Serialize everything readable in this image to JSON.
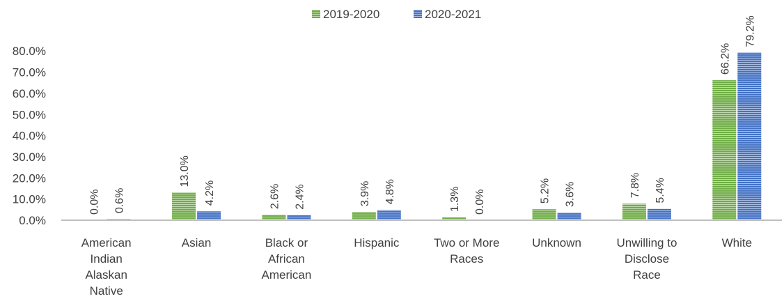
{
  "chart_data": {
    "type": "bar",
    "categories": [
      [
        "American",
        "Indian",
        "Alaskan",
        "Native"
      ],
      [
        "Asian"
      ],
      [
        "Black or",
        "African",
        "American"
      ],
      [
        "Hispanic"
      ],
      [
        "Two or More",
        "Races"
      ],
      [
        "Unknown"
      ],
      [
        "Unwilling to",
        "Disclose",
        "Race"
      ],
      [
        "White"
      ]
    ],
    "series": [
      {
        "name": "2019-2020",
        "color": "#70AD47",
        "values": [
          0.0,
          13.0,
          2.6,
          3.9,
          1.3,
          5.2,
          7.8,
          66.2
        ],
        "labels": [
          "0.0%",
          "13.0%",
          "2.6%",
          "3.9%",
          "1.3%",
          "5.2%",
          "7.8%",
          "66.2%"
        ]
      },
      {
        "name": "2020-2021",
        "color": "#4472C4",
        "values": [
          0.6,
          4.2,
          2.4,
          4.8,
          0.0,
          3.6,
          5.4,
          79.2
        ],
        "labels": [
          "0.6%",
          "4.2%",
          "2.4%",
          "4.8%",
          "0.0%",
          "3.6%",
          "5.4%",
          "79.2%"
        ]
      }
    ],
    "yticks": [
      "0.0%",
      "10.0%",
      "20.0%",
      "30.0%",
      "40.0%",
      "50.0%",
      "60.0%",
      "70.0%",
      "80.0%"
    ],
    "ylim": [
      0,
      80
    ],
    "title": "",
    "xlabel": "",
    "ylabel": "",
    "grid": false,
    "legend_position": "top"
  }
}
